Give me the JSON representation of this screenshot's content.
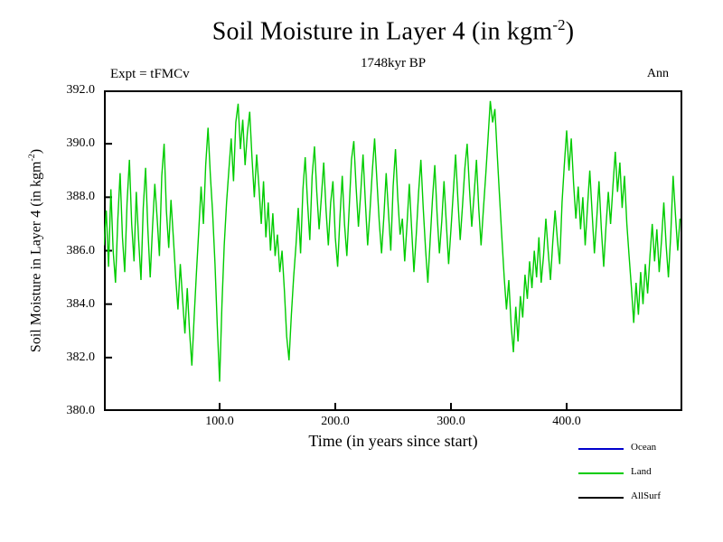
{
  "header": {
    "title_pre": "Soil Moisture in Layer 4 (in kgm",
    "title_sup": "-2",
    "title_post": ")",
    "subtitle": "1748kyr BP",
    "experiment": "Expt = tFMCv",
    "period": "Ann"
  },
  "axes": {
    "xlabel": "Time (in years since start)",
    "ylabel_pre": "Soil Moisture in Layer 4 (in kgm",
    "ylabel_sup": "-2",
    "ylabel_post": ")"
  },
  "legend": {
    "items": [
      {
        "label": "Ocean",
        "color": "#0000cc"
      },
      {
        "label": "Land",
        "color": "#00cc00"
      },
      {
        "label": "AllSurf",
        "color": "#000000"
      }
    ]
  },
  "chart_data": {
    "type": "line",
    "title": "Soil Moisture in Layer 4 (in kgm-2)",
    "subtitle": "1748kyr BP",
    "experiment": "Expt = tFMCv",
    "period": "Ann",
    "xlabel": "Time (in years since start)",
    "ylabel": "Soil Moisture in Layer 4 (in kgm-2)",
    "xlim": [
      0,
      500
    ],
    "ylim": [
      380.0,
      392.0
    ],
    "xticks": [
      100,
      200,
      300,
      400
    ],
    "yticks": [
      380,
      382,
      384,
      386,
      388,
      390,
      392
    ],
    "grid": false,
    "legend_position": "bottom-right",
    "x": {
      "start": 0,
      "step": 2
    },
    "series": [
      {
        "name": "Ocean",
        "color": "#0000cc",
        "values": []
      },
      {
        "name": "Land",
        "color": "#00cc00",
        "values": [
          386.2,
          387.5,
          385.4,
          388.3,
          386.0,
          384.8,
          387.2,
          388.9,
          386.5,
          385.2,
          387.8,
          389.4,
          387.0,
          385.6,
          388.2,
          386.4,
          384.9,
          387.6,
          389.1,
          386.8,
          385.0,
          386.9,
          388.5,
          387.2,
          385.8,
          388.8,
          390.0,
          387.5,
          386.1,
          387.9,
          386.5,
          385.0,
          383.8,
          385.5,
          384.2,
          382.9,
          384.6,
          383.0,
          381.7,
          383.5,
          385.2,
          386.8,
          388.4,
          387.0,
          389.2,
          390.6,
          388.8,
          387.4,
          385.5,
          383.2,
          381.1,
          384.0,
          386.2,
          387.8,
          389.0,
          390.2,
          388.6,
          390.8,
          391.5,
          389.8,
          390.9,
          389.2,
          390.4,
          391.2,
          389.5,
          388.0,
          389.6,
          388.4,
          387.0,
          388.6,
          386.5,
          387.8,
          386.0,
          387.4,
          385.8,
          386.6,
          385.2,
          386.0,
          384.5,
          382.8,
          381.9,
          383.6,
          385.0,
          386.2,
          387.6,
          385.9,
          388.3,
          389.5,
          387.8,
          386.4,
          388.8,
          389.9,
          388.2,
          386.8,
          388.0,
          389.3,
          387.5,
          386.2,
          387.8,
          388.6,
          386.5,
          385.4,
          387.2,
          388.8,
          387.0,
          385.8,
          387.6,
          389.4,
          390.1,
          388.4,
          386.9,
          388.2,
          389.6,
          387.8,
          386.2,
          387.5,
          389.0,
          390.2,
          388.6,
          387.1,
          385.9,
          387.3,
          388.9,
          387.4,
          386.0,
          388.4,
          389.8,
          388.0,
          386.6,
          387.2,
          385.6,
          387.0,
          388.5,
          386.8,
          385.2,
          386.6,
          388.2,
          389.4,
          387.6,
          386.1,
          384.8,
          386.4,
          387.9,
          389.2,
          387.4,
          385.9,
          387.1,
          388.6,
          387.0,
          385.5,
          386.8,
          388.2,
          389.6,
          387.9,
          386.4,
          387.7,
          389.1,
          390.0,
          388.3,
          386.9,
          388.1,
          389.4,
          387.6,
          386.2,
          387.5,
          388.8,
          390.2,
          391.6,
          390.8,
          391.3,
          389.6,
          388.0,
          386.5,
          385.0,
          383.8,
          384.9,
          383.2,
          382.2,
          383.9,
          382.6,
          384.3,
          383.5,
          385.1,
          384.2,
          385.6,
          384.6,
          386.0,
          385.0,
          386.5,
          384.8,
          385.8,
          387.2,
          386.0,
          384.9,
          386.3,
          387.5,
          386.4,
          385.5,
          387.8,
          389.2,
          390.5,
          389.0,
          390.2,
          388.5,
          387.2,
          388.4,
          386.8,
          388.0,
          386.2,
          387.6,
          389.0,
          387.4,
          385.9,
          387.2,
          388.6,
          386.8,
          385.4,
          386.9,
          388.2,
          387.0,
          388.4,
          389.7,
          388.2,
          389.3,
          387.6,
          388.8,
          387.0,
          385.8,
          384.6,
          383.3,
          384.8,
          383.6,
          385.2,
          384.0,
          385.5,
          384.4,
          385.8,
          387.0,
          385.6,
          386.8,
          385.2,
          386.4,
          387.8,
          386.2,
          385.0,
          386.6,
          388.8,
          387.4,
          386.0,
          387.2
        ]
      },
      {
        "name": "AllSurf",
        "color": "#000000",
        "values": []
      }
    ]
  }
}
